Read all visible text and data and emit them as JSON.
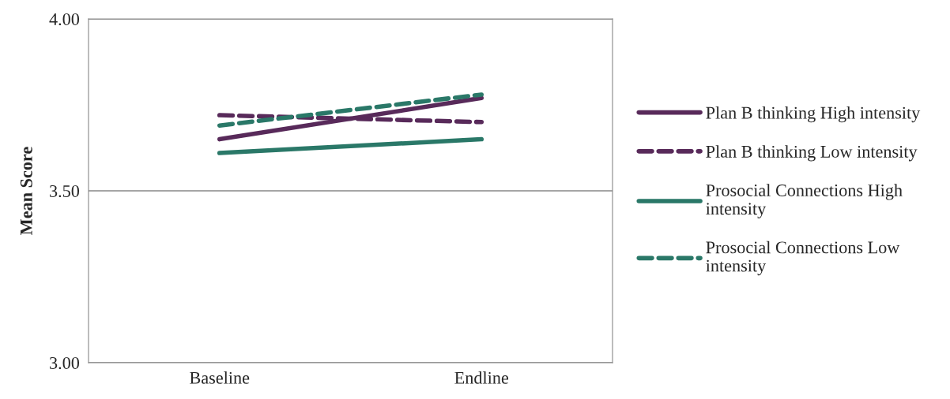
{
  "chart_data": {
    "type": "line",
    "ylabel": "Mean Score",
    "categories": [
      "Baseline",
      "Endline"
    ],
    "series": [
      {
        "name": "Plan B thinking High intensity",
        "color": "#582a5a",
        "line_style": "solid",
        "values": [
          3.65,
          3.77
        ]
      },
      {
        "name": "Plan B thinking Low intensity",
        "color": "#582a5a",
        "line_style": "dashed",
        "values": [
          3.72,
          3.7
        ]
      },
      {
        "name": "Prosocial Connections High\nintensity",
        "color": "#2a7868",
        "line_style": "solid",
        "values": [
          3.61,
          3.65
        ]
      },
      {
        "name": "Prosocial Connections Low\nintensity",
        "color": "#2a7868",
        "line_style": "dashed",
        "values": [
          3.69,
          3.78
        ]
      }
    ],
    "ylim": [
      3.0,
      4.0
    ],
    "yticks": [
      {
        "value": 3.0,
        "label": "3.00"
      },
      {
        "value": 3.5,
        "label": "3.50"
      },
      {
        "value": 4.0,
        "label": "4.00"
      }
    ],
    "grid": "y",
    "legend": "right",
    "marker": "none"
  }
}
